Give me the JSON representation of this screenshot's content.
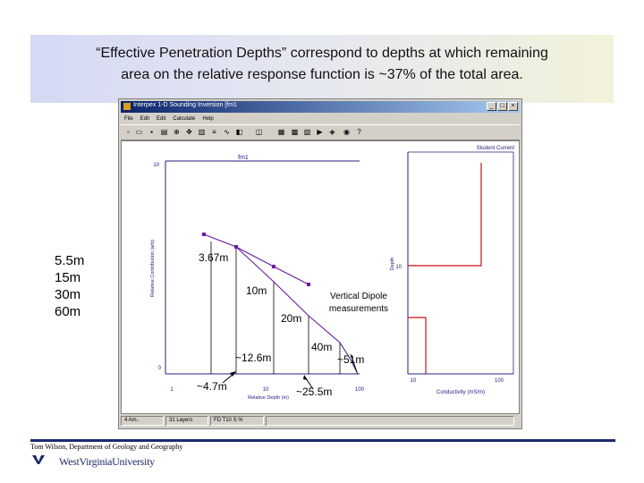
{
  "slide": {
    "title_line1": "“Effective Penetration Depths” correspond to depths at which remaining",
    "title_line2": "area on the relative response function is ~37% of the total area.",
    "depths": [
      "5.5m",
      "15m",
      "30m",
      "60m"
    ],
    "footer_credit": "Tom Wilson, Department of Geology and Geography",
    "footer_logo_text": "WestVirginiaUniversity"
  },
  "window": {
    "title": "Interpex 1-D Sounding Inversion [fm1",
    "menu": [
      "File",
      "Edit",
      "Edit",
      "Calculate",
      "Help"
    ],
    "status": [
      "4 Am..",
      "31 Layers",
      "FD T10 S %"
    ]
  },
  "plot": {
    "title": "fm1",
    "y_axis_label": "Relative Contribution (arb)",
    "x_axis_label": "Relative Depth (m)",
    "y_tick_top": "10",
    "y_tick_bottom": "0",
    "x_ticks": [
      "1",
      "10",
      "100"
    ],
    "annotation_vd_line1": "Vertical Dipole",
    "annotation_vd_line2": "measurements",
    "labels": {
      "l367": "3.67m",
      "l10": "10m",
      "l20": "20m",
      "l40": "40m",
      "l126": "~12.6m",
      "l47": "~4.7m",
      "l255": "~25.5m",
      "l51": "~51m"
    }
  },
  "side_panel": {
    "title": "Student Current",
    "y_label": "Depth",
    "y_tick": "10",
    "x_label": "Conductivity (mS/m)",
    "x_ticks": [
      "10",
      "100"
    ]
  },
  "colors": {
    "curve": "#6a1aa0",
    "axes": "#202080",
    "model_line": "#cc1111",
    "title_bar": "#0a246a"
  }
}
